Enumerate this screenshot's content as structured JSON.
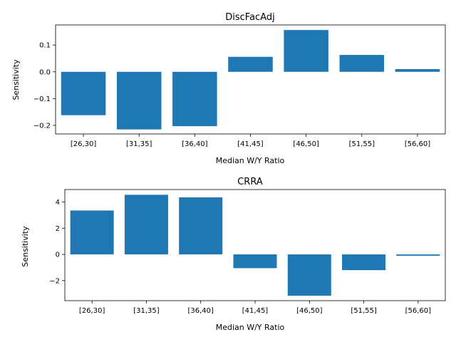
{
  "chart_data": [
    {
      "type": "bar",
      "title": "DiscFacAdj",
      "xlabel": "Median W/Y Ratio",
      "ylabel": "Sensitivity",
      "categories": [
        "[26,30]",
        "[31,35]",
        "[36,40]",
        "[41,45]",
        "[46,50]",
        "[51,55]",
        "[56,60]"
      ],
      "values": [
        -0.162,
        -0.215,
        -0.203,
        0.056,
        0.156,
        0.063,
        0.01
      ],
      "ylim": [
        -0.232,
        0.175
      ],
      "yticks": [
        -0.2,
        -0.1,
        0.0,
        0.1
      ],
      "ytick_labels": [
        "−0.2",
        "−0.1",
        "0.0",
        "0.1"
      ],
      "grid": false,
      "color": "#1f77b4"
    },
    {
      "type": "bar",
      "title": "CRRA",
      "xlabel": "Median W/Y Ratio",
      "ylabel": "Sensitivity",
      "categories": [
        "[26,30]",
        "[31,35]",
        "[36,40]",
        "[41,45]",
        "[46,50]",
        "[51,55]",
        "[56,60]"
      ],
      "values": [
        3.35,
        4.55,
        4.35,
        -1.05,
        -3.15,
        -1.2,
        -0.1
      ],
      "ylim": [
        -3.53,
        4.95
      ],
      "yticks": [
        -2,
        0,
        2,
        4
      ],
      "ytick_labels": [
        "−2",
        "0",
        "2",
        "4"
      ],
      "grid": false,
      "color": "#1f77b4"
    }
  ]
}
